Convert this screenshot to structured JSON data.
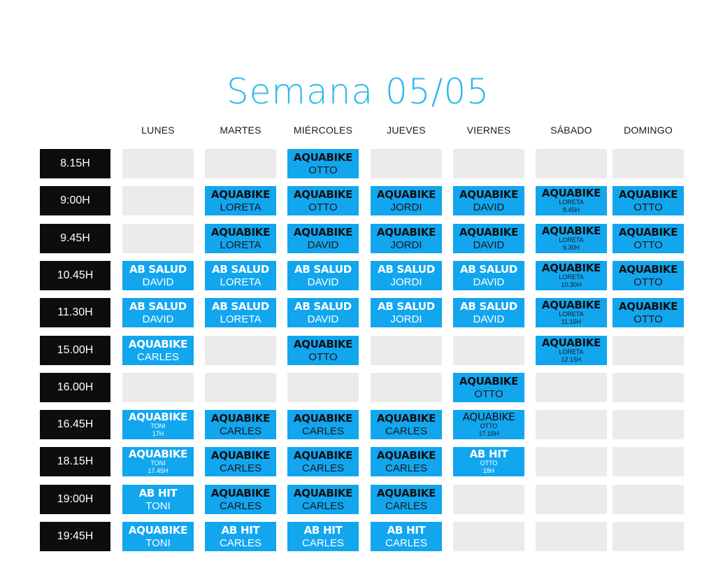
{
  "title": "Semana 05/05",
  "days": [
    "LUNES",
    "MARTES",
    "MIÉRCOLES",
    "JUEVES",
    "VIERNES",
    "SÁBADO",
    "DOMINGO"
  ],
  "rows": [
    {
      "time": "8.15H",
      "cells": [
        null,
        null,
        {
          "name": "AQUABIKE",
          "instructor": "OTTO"
        },
        null,
        null,
        null,
        null
      ]
    },
    {
      "time": "9:00H",
      "cells": [
        null,
        {
          "name": "AQUABIKE",
          "instructor": "LORETA"
        },
        {
          "name": "AQUABIKE",
          "instructor": "OTTO"
        },
        {
          "name": "AQUABIKE",
          "instructor": "JORDI"
        },
        {
          "name": "AQUABIKE",
          "instructor": "DAVID"
        },
        {
          "name": "AQUABIKE",
          "sub": [
            "LORETA",
            "8.45H"
          ]
        },
        {
          "name": "AQUABIKE",
          "instructor": "OTTO"
        }
      ]
    },
    {
      "time": "9.45H",
      "cells": [
        null,
        {
          "name": "AQUABIKE",
          "instructor": "LORETA"
        },
        {
          "name": "AQUABIKE",
          "instructor": "DAVID"
        },
        {
          "name": "AQUABIKE",
          "instructor": "JORDI"
        },
        {
          "name": "AQUABIKE",
          "instructor": "DAVID"
        },
        {
          "name": "AQUABIKE",
          "sub": [
            "LORETA",
            "9.30H"
          ]
        },
        {
          "name": "AQUABIKE",
          "instructor": "OTTO"
        }
      ]
    },
    {
      "time": "10.45H",
      "cells": [
        {
          "name": "AB SALUD",
          "instructor": "DAVID",
          "light": true
        },
        {
          "name": "AB SALUD",
          "instructor": "LORETA",
          "light": true
        },
        {
          "name": "AB SALUD",
          "instructor": "DAVID",
          "light": true
        },
        {
          "name": "AB SALUD",
          "instructor": "JORDI",
          "light": true
        },
        {
          "name": "AB SALUD",
          "instructor": "DAVID",
          "light": true
        },
        {
          "name": "AQUABIKE",
          "sub": [
            "LORETA",
            "10.30H"
          ]
        },
        {
          "name": "AQUABIKE",
          "instructor": "OTTO"
        }
      ]
    },
    {
      "time": "11.30H",
      "cells": [
        {
          "name": "AB SALUD",
          "instructor": "DAVID",
          "light": true
        },
        {
          "name": "AB SALUD",
          "instructor": "LORETA",
          "light": true
        },
        {
          "name": "AB SALUD",
          "instructor": "DAVID",
          "light": true
        },
        {
          "name": "AB SALUD",
          "instructor": "JORDI",
          "light": true
        },
        {
          "name": "AB SALUD",
          "instructor": "DAVID",
          "light": true
        },
        {
          "name": "AQUABIKE",
          "sub": [
            "LORETA",
            "11.15H"
          ]
        },
        {
          "name": "AQUABIKE",
          "instructor": "OTTO"
        }
      ]
    },
    {
      "time": "15.00H",
      "cells": [
        {
          "name": "AQUABIKE",
          "instructor": "CARLES",
          "light": true
        },
        null,
        {
          "name": "AQUABIKE",
          "instructor": "OTTO"
        },
        null,
        null,
        {
          "name": "AQUABIKE",
          "sub": [
            "LORETA",
            "12.15H"
          ]
        },
        null
      ]
    },
    {
      "time": "16.00H",
      "cells": [
        null,
        null,
        null,
        null,
        {
          "name": "AQUABIKE",
          "instructor": "OTTO"
        },
        null,
        null
      ]
    },
    {
      "time": "16.45H",
      "cells": [
        {
          "name": "AQUABIKE",
          "sub": [
            "TONI",
            "17H"
          ],
          "light": true
        },
        {
          "name": "AQUABIKE",
          "instructor": "CARLES"
        },
        {
          "name": "AQUABIKE",
          "instructor": "CARLES"
        },
        {
          "name": "AQUABIKE",
          "instructor": "CARLES"
        },
        {
          "name": "AQUABIKE",
          "sub": [
            "OTTO",
            "17.15H"
          ],
          "thin": true
        },
        null,
        null
      ]
    },
    {
      "time": "18.15H",
      "cells": [
        {
          "name": "AQUABIKE",
          "sub": [
            "TONI",
            "17.45H"
          ],
          "light": true
        },
        {
          "name": "AQUABIKE",
          "instructor": "CARLES"
        },
        {
          "name": "AQUABIKE",
          "instructor": "CARLES"
        },
        {
          "name": "AQUABIKE",
          "instructor": "CARLES"
        },
        {
          "name": "AB HIT",
          "sub": [
            "OTTO",
            "18H"
          ],
          "light": true
        },
        null,
        null
      ]
    },
    {
      "time": "19:00H",
      "cells": [
        {
          "name": "AB HIT",
          "instructor": "TONI",
          "light": true
        },
        {
          "name": "AQUABIKE",
          "instructor": "CARLES"
        },
        {
          "name": "AQUABIKE",
          "instructor": "CARLES"
        },
        {
          "name": "AQUABIKE",
          "instructor": "CARLES"
        },
        null,
        null,
        null
      ]
    },
    {
      "time": "19:45H",
      "cells": [
        {
          "name": "AQUABIKE",
          "instructor": "TONI",
          "light": true
        },
        {
          "name": "AB HIT",
          "instructor": "CARLES",
          "light": true
        },
        {
          "name": "AB HIT",
          "instructor": "CARLES",
          "light": true
        },
        {
          "name": "AB HIT",
          "instructor": "CARLES",
          "light": true
        },
        null,
        null,
        null
      ]
    }
  ],
  "colors": {
    "title": "#2cb8ee",
    "class_cell": "#12a6ef",
    "empty_cell": "#ebebeb",
    "time_cell": "#0d0d0d"
  }
}
